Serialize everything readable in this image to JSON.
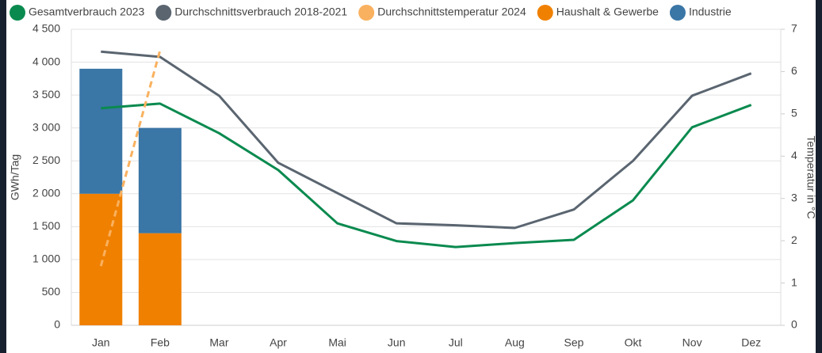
{
  "chart_data": {
    "type": "combo",
    "categories": [
      "Jan",
      "Feb",
      "Mar",
      "Apr",
      "Mai",
      "Jun",
      "Jul",
      "Aug",
      "Sep",
      "Okt",
      "Nov",
      "Dez"
    ],
    "ylabel": "GWh/Tag",
    "y2label": "Temperatur in °C",
    "ylim": [
      0,
      4500
    ],
    "yticks": [
      0,
      500,
      {
        "value": 1000,
        "label": "1 000"
      },
      {
        "value": 1500,
        "label": "1 500"
      },
      {
        "value": 2000,
        "label": "2 000"
      },
      {
        "value": 2500,
        "label": "2 500"
      },
      {
        "value": 3000,
        "label": "3 000"
      },
      {
        "value": 3500,
        "label": "3 500"
      },
      {
        "value": 4000,
        "label": "4 000"
      },
      {
        "value": 4500,
        "label": "4 500"
      }
    ],
    "y2lim": [
      0,
      7
    ],
    "y2ticks": [
      0,
      1,
      2,
      3,
      4,
      5,
      6,
      7
    ],
    "grid": true,
    "series": [
      {
        "name": "Gesamtverbrauch 2023",
        "type": "line",
        "color": "#0a8a4f",
        "values": [
          3300,
          3370,
          2920,
          2360,
          1550,
          1280,
          1190,
          1250,
          1300,
          1900,
          3010,
          3350
        ]
      },
      {
        "name": "Durchschnittsverbrauch 2018-2021",
        "type": "line",
        "color": "#5a6570",
        "values": [
          4160,
          4080,
          3490,
          2470,
          2010,
          1550,
          1520,
          1480,
          1760,
          2500,
          3490,
          3830
        ]
      },
      {
        "name": "Durchschnittstemperatur 2024",
        "type": "line",
        "dashed": true,
        "axis": "y2",
        "color": "#f9b15f",
        "values": [
          1.4,
          6.5,
          null,
          null,
          null,
          null,
          null,
          null,
          null,
          null,
          null,
          null
        ]
      },
      {
        "name": "Haushalt & Gewerbe",
        "type": "bar",
        "color": "#f08000",
        "values": [
          2000,
          1400,
          null,
          null,
          null,
          null,
          null,
          null,
          null,
          null,
          null,
          null
        ]
      },
      {
        "name": "Industrie",
        "type": "bar",
        "color": "#3a76a6",
        "values": [
          1900,
          1600,
          null,
          null,
          null,
          null,
          null,
          null,
          null,
          null,
          null,
          null
        ]
      }
    ]
  }
}
